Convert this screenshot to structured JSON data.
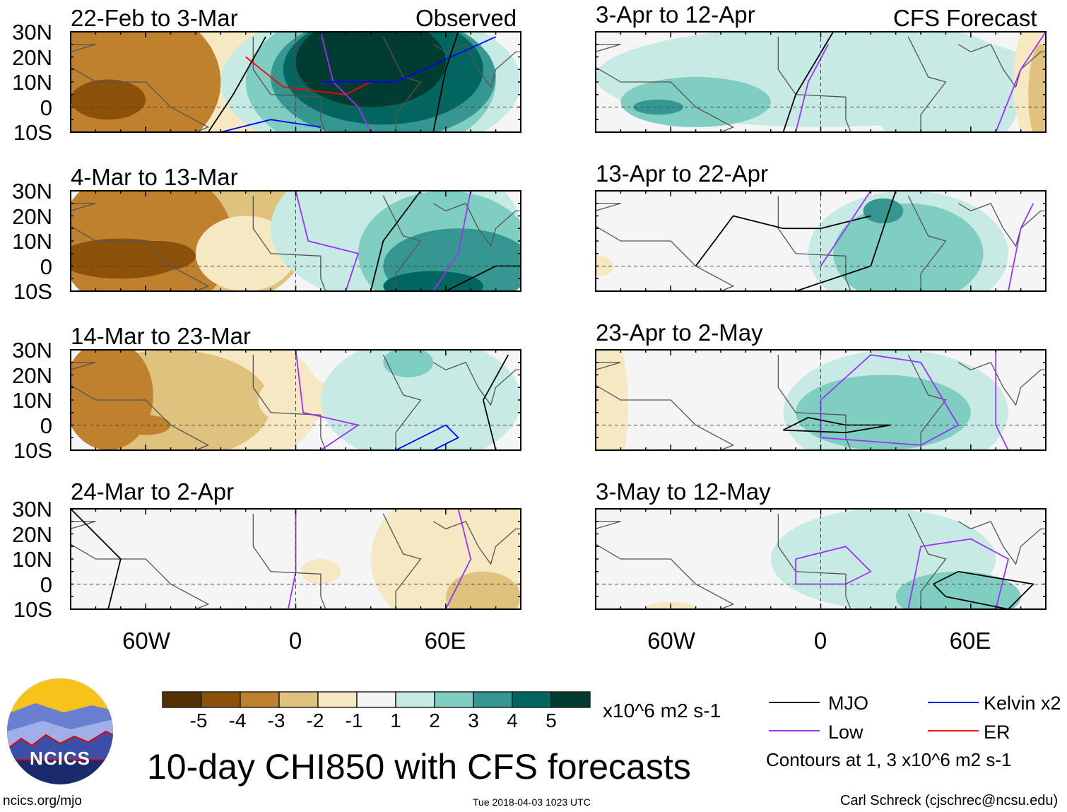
{
  "figure_title": "10-day CHI850 with CFS forecasts",
  "left_column_label": "Observed",
  "right_column_label": "CFS Forecast",
  "panels_left": [
    "22-Feb to 3-Mar",
    "4-Mar to 13-Mar",
    "14-Mar to 23-Mar",
    "24-Mar to 2-Apr"
  ],
  "panels_right": [
    "3-Apr to 12-Apr",
    "13-Apr to 22-Apr",
    "23-Apr to 2-May",
    "3-May to 12-May"
  ],
  "lat_labels": [
    "30N",
    "20N",
    "10N",
    "0",
    "10S"
  ],
  "lon_labels": [
    "60W",
    "0",
    "60E"
  ],
  "colorbar": {
    "labels": [
      "-5",
      "-4",
      "-3",
      "-2",
      "-1",
      "1",
      "2",
      "3",
      "4",
      "5"
    ],
    "colors": [
      "#543005",
      "#8c510a",
      "#bf812d",
      "#dfc27d",
      "#f6e8c3",
      "#f5f5f5",
      "#c7eae5",
      "#80cdc1",
      "#35978f",
      "#01665e",
      "#003c30"
    ],
    "units": "x10^6 m2 s-1"
  },
  "legend": {
    "items": [
      {
        "label": "MJO",
        "color": "#000000"
      },
      {
        "label": "Low",
        "color": "#9b30ff"
      },
      {
        "label": "Kelvin x2",
        "color": "#0000ff"
      },
      {
        "label": "ER",
        "color": "#ff0000"
      }
    ],
    "note": "Contours at 1, 3 x10^6 m2 s-1"
  },
  "logo_text": "NCICS",
  "url": "ncics.org/mjo",
  "timestamp": "Tue 2018-04-03 1023 UTC",
  "author": "Carl Schreck (cjschrec@ncsu.edu)"
}
